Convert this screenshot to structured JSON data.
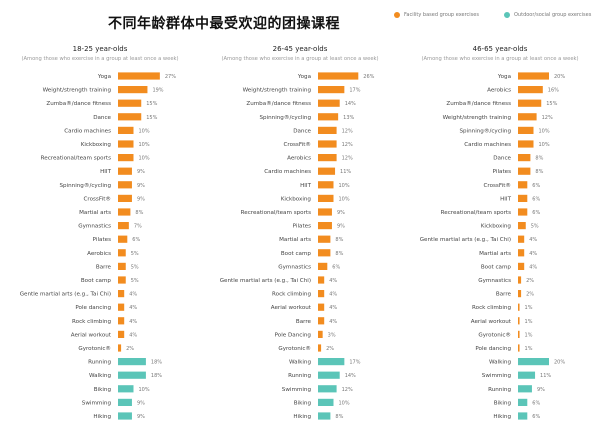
{
  "title": "不同年龄群体中最受欢迎的团操课程",
  "legend": {
    "facility": "Facility based group exercises",
    "outdoor": "Outdoor/social group exercises"
  },
  "colors": {
    "facility": "#F28C1F",
    "outdoor": "#5BC5B8"
  },
  "chart_data": [
    {
      "type": "bar",
      "title": "18-25 year-olds",
      "subtitle": "(Among those who exercise in a group at least once a week)",
      "bars": [
        {
          "label": "Yoga",
          "value": 27,
          "group": "facility"
        },
        {
          "label": "Weight/strength training",
          "value": 19,
          "group": "facility"
        },
        {
          "label": "Zumba®/dance fitness",
          "value": 15,
          "group": "facility"
        },
        {
          "label": "Dance",
          "value": 15,
          "group": "facility"
        },
        {
          "label": "Cardio machines",
          "value": 10,
          "group": "facility"
        },
        {
          "label": "Kickboxing",
          "value": 10,
          "group": "facility"
        },
        {
          "label": "Recreational/team sports",
          "value": 10,
          "group": "facility"
        },
        {
          "label": "HIIT",
          "value": 9,
          "group": "facility"
        },
        {
          "label": "Spinning®/cycling",
          "value": 9,
          "group": "facility"
        },
        {
          "label": "CrossFit®",
          "value": 9,
          "group": "facility"
        },
        {
          "label": "Martial arts",
          "value": 8,
          "group": "facility"
        },
        {
          "label": "Gymnastics",
          "value": 7,
          "group": "facility"
        },
        {
          "label": "Pilates",
          "value": 6,
          "group": "facility"
        },
        {
          "label": "Aerobics",
          "value": 5,
          "group": "facility"
        },
        {
          "label": "Barre",
          "value": 5,
          "group": "facility"
        },
        {
          "label": "Boot camp",
          "value": 5,
          "group": "facility"
        },
        {
          "label": "Gentle martial arts (e.g., Tai Chi)",
          "value": 4,
          "group": "facility"
        },
        {
          "label": "Pole dancing",
          "value": 4,
          "group": "facility"
        },
        {
          "label": "Rock climbing",
          "value": 4,
          "group": "facility"
        },
        {
          "label": "Aerial workout",
          "value": 4,
          "group": "facility"
        },
        {
          "label": "Gyrotonic®",
          "value": 2,
          "group": "facility"
        },
        {
          "label": "Running",
          "value": 18,
          "group": "outdoor"
        },
        {
          "label": "Walking",
          "value": 18,
          "group": "outdoor"
        },
        {
          "label": "Biking",
          "value": 10,
          "group": "outdoor"
        },
        {
          "label": "Swimming",
          "value": 9,
          "group": "outdoor"
        },
        {
          "label": "Hiking",
          "value": 9,
          "group": "outdoor"
        }
      ]
    },
    {
      "type": "bar",
      "title": "26-45 year-olds",
      "subtitle": "(Among those who exercise in a group at least once a week)",
      "bars": [
        {
          "label": "Yoga",
          "value": 26,
          "group": "facility"
        },
        {
          "label": "Weight/strength training",
          "value": 17,
          "group": "facility"
        },
        {
          "label": "Zumba®/dance fitness",
          "value": 14,
          "group": "facility"
        },
        {
          "label": "Spinning®/cycling",
          "value": 13,
          "group": "facility"
        },
        {
          "label": "Dance",
          "value": 12,
          "group": "facility"
        },
        {
          "label": "CrossFit®",
          "value": 12,
          "group": "facility"
        },
        {
          "label": "Aerobics",
          "value": 12,
          "group": "facility"
        },
        {
          "label": "Cardio machines",
          "value": 11,
          "group": "facility"
        },
        {
          "label": "HIIT",
          "value": 10,
          "group": "facility"
        },
        {
          "label": "Kickboxing",
          "value": 10,
          "group": "facility"
        },
        {
          "label": "Recreational/team sports",
          "value": 9,
          "group": "facility"
        },
        {
          "label": "Pilates",
          "value": 9,
          "group": "facility"
        },
        {
          "label": "Martial arts",
          "value": 8,
          "group": "facility"
        },
        {
          "label": "Boot camp",
          "value": 8,
          "group": "facility"
        },
        {
          "label": "Gymnastics",
          "value": 6,
          "group": "facility"
        },
        {
          "label": "Gentle martial arts (e.g., Tai Chi)",
          "value": 4,
          "group": "facility"
        },
        {
          "label": "Rock climbing",
          "value": 4,
          "group": "facility"
        },
        {
          "label": "Aerial workout",
          "value": 4,
          "group": "facility"
        },
        {
          "label": "Barre",
          "value": 4,
          "group": "facility"
        },
        {
          "label": "Pole Dancing",
          "value": 3,
          "group": "facility"
        },
        {
          "label": "Gyrotonic®",
          "value": 2,
          "group": "facility"
        },
        {
          "label": "Walking",
          "value": 17,
          "group": "outdoor"
        },
        {
          "label": "Running",
          "value": 14,
          "group": "outdoor"
        },
        {
          "label": "Swimming",
          "value": 12,
          "group": "outdoor"
        },
        {
          "label": "Biking",
          "value": 10,
          "group": "outdoor"
        },
        {
          "label": "Hiking",
          "value": 8,
          "group": "outdoor"
        }
      ]
    },
    {
      "type": "bar",
      "title": "46-65 year-olds",
      "subtitle": "(Among those who exercise in a group at least once a week)",
      "bars": [
        {
          "label": "Yoga",
          "value": 20,
          "group": "facility"
        },
        {
          "label": "Aerobics",
          "value": 16,
          "group": "facility"
        },
        {
          "label": "Zumba®/dance fitness",
          "value": 15,
          "group": "facility"
        },
        {
          "label": "Weight/strength training",
          "value": 12,
          "group": "facility"
        },
        {
          "label": "Spinning®/cycling",
          "value": 10,
          "group": "facility"
        },
        {
          "label": "Cardio machines",
          "value": 10,
          "group": "facility"
        },
        {
          "label": "Dance",
          "value": 8,
          "group": "facility"
        },
        {
          "label": "Pilates",
          "value": 8,
          "group": "facility"
        },
        {
          "label": "CrossFit®",
          "value": 6,
          "group": "facility"
        },
        {
          "label": "HIIT",
          "value": 6,
          "group": "facility"
        },
        {
          "label": "Recreational/team sports",
          "value": 6,
          "group": "facility"
        },
        {
          "label": "Kickboxing",
          "value": 5,
          "group": "facility"
        },
        {
          "label": "Gentle martial arts (e.g., Tai Chi)",
          "value": 4,
          "group": "facility"
        },
        {
          "label": "Martial arts",
          "value": 4,
          "group": "facility"
        },
        {
          "label": "Boot camp",
          "value": 4,
          "group": "facility"
        },
        {
          "label": "Gymnastics",
          "value": 2,
          "group": "facility"
        },
        {
          "label": "Barre",
          "value": 2,
          "group": "facility"
        },
        {
          "label": "Rock climbing",
          "value": 1,
          "group": "facility"
        },
        {
          "label": "Aerial workout",
          "value": 1,
          "group": "facility"
        },
        {
          "label": "Gyrotonic®",
          "value": 1,
          "group": "facility"
        },
        {
          "label": "Pole dancing",
          "value": 1,
          "group": "facility"
        },
        {
          "label": "Walking",
          "value": 20,
          "group": "outdoor"
        },
        {
          "label": "Swimming",
          "value": 11,
          "group": "outdoor"
        },
        {
          "label": "Running",
          "value": 9,
          "group": "outdoor"
        },
        {
          "label": "Biking",
          "value": 6,
          "group": "outdoor"
        },
        {
          "label": "Hiking",
          "value": 6,
          "group": "outdoor"
        }
      ]
    }
  ]
}
